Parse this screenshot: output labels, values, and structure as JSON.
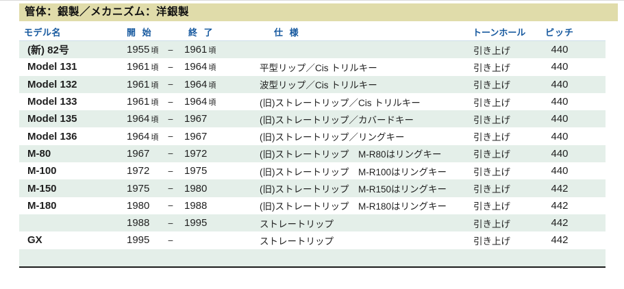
{
  "table": {
    "title": "管体：銀製／メカニズム：洋銀製",
    "title_bg": "#e0dcaa",
    "header_text_color": "#17599f",
    "alt_row_bg": "#e4efe9",
    "columns": {
      "model": "モデル名",
      "start": "開 始",
      "end": "終 了",
      "spec": "仕 様",
      "tonehole": "トーンホール",
      "pitch": "ピッチ"
    },
    "rows": [
      {
        "model": "(新) 82号",
        "start": "1955",
        "start_approx": "頃",
        "dash": "−",
        "end": "1961",
        "end_approx": "頃",
        "spec": "",
        "tonehole": "引き上げ",
        "pitch": "440"
      },
      {
        "model": "Model 131",
        "start": "1961",
        "start_approx": "頃",
        "dash": "−",
        "end": "1964",
        "end_approx": "頃",
        "spec": "平型リップ／Cis トリルキー",
        "tonehole": "引き上げ",
        "pitch": "440"
      },
      {
        "model": "Model 132",
        "start": "1961",
        "start_approx": "頃",
        "dash": "−",
        "end": "1964",
        "end_approx": "頃",
        "spec": "波型リップ／Cis トリルキー",
        "tonehole": "引き上げ",
        "pitch": "440"
      },
      {
        "model": "Model 133",
        "start": "1961",
        "start_approx": "頃",
        "dash": "−",
        "end": "1964",
        "end_approx": "頃",
        "spec": "(旧)ストレートリップ／Cis トリルキー",
        "tonehole": "引き上げ",
        "pitch": "440"
      },
      {
        "model": "Model 135",
        "start": "1964",
        "start_approx": "頃",
        "dash": "−",
        "end": "1967",
        "end_approx": "",
        "spec": "(旧)ストレートリップ／カバードキー",
        "tonehole": "引き上げ",
        "pitch": "440"
      },
      {
        "model": "Model 136",
        "start": "1964",
        "start_approx": "頃",
        "dash": "−",
        "end": "1967",
        "end_approx": "",
        "spec": "(旧)ストレートリップ／リングキー",
        "tonehole": "引き上げ",
        "pitch": "440"
      },
      {
        "model": "M-80",
        "start": "1967",
        "start_approx": "",
        "dash": "−",
        "end": "1972",
        "end_approx": "",
        "spec": "(旧)ストレートリップ　M-R80はリングキー",
        "tonehole": "引き上げ",
        "pitch": "440"
      },
      {
        "model": "M-100",
        "start": "1972",
        "start_approx": "",
        "dash": "−",
        "end": "1975",
        "end_approx": "",
        "spec": "(旧)ストレートリップ　M-R100はリングキー",
        "tonehole": "引き上げ",
        "pitch": "440"
      },
      {
        "model": "M-150",
        "start": "1975",
        "start_approx": "",
        "dash": "−",
        "end": "1980",
        "end_approx": "",
        "spec": "(旧)ストレートリップ　M-R150はリングキー",
        "tonehole": "引き上げ",
        "pitch": "442"
      },
      {
        "model": "M-180",
        "start": "1980",
        "start_approx": "",
        "dash": "−",
        "end": "1988",
        "end_approx": "",
        "spec": "(旧)ストレートリップ　M-R180はリングキー",
        "tonehole": "引き上げ",
        "pitch": "442"
      },
      {
        "model": "",
        "start": "1988",
        "start_approx": "",
        "dash": "−",
        "end": "1995",
        "end_approx": "",
        "spec": "ストレートリップ",
        "tonehole": "引き上げ",
        "pitch": "442"
      },
      {
        "model": "GX",
        "start": "1995",
        "start_approx": "",
        "dash": "−",
        "end": "",
        "end_approx": "",
        "spec": "ストレートリップ",
        "tonehole": "引き上げ",
        "pitch": "442"
      },
      {
        "model": "",
        "start": "",
        "start_approx": "",
        "dash": "",
        "end": "",
        "end_approx": "",
        "spec": "",
        "tonehole": "",
        "pitch": ""
      }
    ]
  }
}
